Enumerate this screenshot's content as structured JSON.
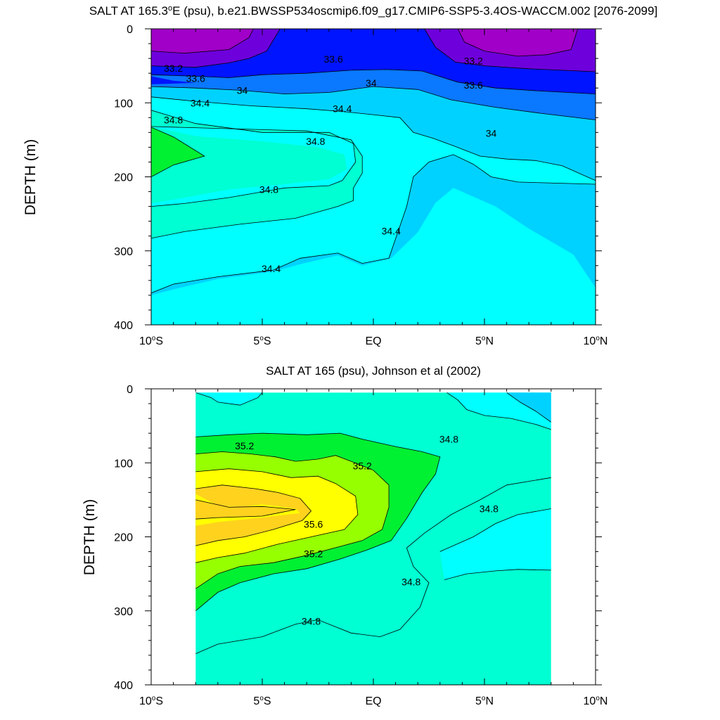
{
  "figure": {
    "description": "Two-panel ocean salinity depth cross-section"
  },
  "colors": {
    "s_lt_32_8": "#a000c8",
    "s_32_8_33_2": "#6e00dc",
    "s_33_2_33_6": "#0014ff",
    "s_33_6_34_0": "#0a78ff",
    "s_34_0_34_4": "#00d2ff",
    "s_34_4_34_8": "#00ffff",
    "s_34_8_35_2": "#00ffd2",
    "s_35_2_35_6": "#00f032",
    "s_35_6_36_0": "#96ff00",
    "s_36_0_36_4": "#ffff00",
    "s_gt_36_4": "#ffd21e",
    "contour_line": "#000000"
  },
  "chart_data": [
    {
      "type": "heatmap",
      "subtype": "filled-contour",
      "title_prefix": "SALT AT 165.3",
      "title_degree": "o",
      "title_suffix": "E (psu), b.e21.BWSSP534oscmip6.f09_g17.CMIP6-SSP5-3.4OS-WACCM.002 [2076-2099]",
      "xlabel": "",
      "ylabel": "DEPTH (m)",
      "xlim": [
        -10,
        10
      ],
      "ylim": [
        400,
        0
      ],
      "x_ticks": [
        {
          "value": -10,
          "num": "10",
          "deg": "o",
          "hemi": "S"
        },
        {
          "value": -5,
          "num": "5",
          "deg": "o",
          "hemi": "S"
        },
        {
          "value": 0,
          "num": "EQ",
          "deg": "",
          "hemi": ""
        },
        {
          "value": 5,
          "num": "5",
          "deg": "o",
          "hemi": "N"
        },
        {
          "value": 10,
          "num": "10",
          "deg": "o",
          "hemi": "N"
        }
      ],
      "y_ticks": [
        0,
        100,
        200,
        300,
        400
      ],
      "y_tick_labels": [
        "0",
        "100",
        "200",
        "300",
        "400"
      ],
      "data_extent": {
        "lat": [
          -10,
          10
        ],
        "depth": [
          0,
          400
        ]
      },
      "contour_levels": [
        32.8,
        33.2,
        33.6,
        34.0,
        34.4,
        34.8,
        35.2,
        35.6,
        36.0,
        36.4
      ],
      "contour_labels": [
        {
          "text": "33.2",
          "lat": -9.0,
          "depth": 53
        },
        {
          "text": "33.6",
          "lat": -8.0,
          "depth": 67
        },
        {
          "text": "34",
          "lat": -5.9,
          "depth": 83
        },
        {
          "text": "34.4",
          "lat": -7.8,
          "depth": 100
        },
        {
          "text": "34.8",
          "lat": -9.0,
          "depth": 123
        },
        {
          "text": "33.6",
          "lat": -1.8,
          "depth": 41
        },
        {
          "text": "34",
          "lat": -0.1,
          "depth": 73
        },
        {
          "text": "34.4",
          "lat": -1.4,
          "depth": 108
        },
        {
          "text": "34.8",
          "lat": -2.6,
          "depth": 152
        },
        {
          "text": "34.8",
          "lat": -4.7,
          "depth": 217
        },
        {
          "text": "34.4",
          "lat": 0.8,
          "depth": 273
        },
        {
          "text": "34.4",
          "lat": -4.6,
          "depth": 324
        },
        {
          "text": "33.2",
          "lat": 4.5,
          "depth": 43
        },
        {
          "text": "33.6",
          "lat": 4.5,
          "depth": 76
        },
        {
          "text": "34",
          "lat": 5.3,
          "depth": 141
        }
      ],
      "features": [
        "Fresh surface cores (<32.8 psu) near 8S and 6N in the top 30 m",
        "Salinity maximum (35.2-35.6 psu) near 10S-8S at 150-190 m",
        "Deep layer of 34.4-34.8 psu below 300 m"
      ]
    },
    {
      "type": "heatmap",
      "subtype": "filled-contour",
      "title_prefix": "SALT AT 165 (psu), Johnson et al (2002)",
      "title_degree": "",
      "title_suffix": "",
      "xlabel": "",
      "ylabel": "DEPTH (m)",
      "xlim": [
        -10,
        10
      ],
      "ylim": [
        400,
        0
      ],
      "x_ticks": [
        {
          "value": -10,
          "num": "10",
          "deg": "o",
          "hemi": "S"
        },
        {
          "value": -5,
          "num": "5",
          "deg": "o",
          "hemi": "S"
        },
        {
          "value": 0,
          "num": "EQ",
          "deg": "",
          "hemi": ""
        },
        {
          "value": 5,
          "num": "5",
          "deg": "o",
          "hemi": "N"
        },
        {
          "value": 10,
          "num": "10",
          "deg": "o",
          "hemi": "N"
        }
      ],
      "y_ticks": [
        0,
        100,
        200,
        300,
        400
      ],
      "y_tick_labels": [
        "0",
        "100",
        "200",
        "300",
        "400"
      ],
      "data_extent": {
        "lat": [
          -8,
          8
        ],
        "depth": [
          5,
          400
        ]
      },
      "contour_levels": [
        34.4,
        34.8,
        35.2,
        35.6,
        36.0
      ],
      "contour_labels": [
        {
          "text": "35.2",
          "lat": -5.8,
          "depth": 77
        },
        {
          "text": "35.2",
          "lat": -0.5,
          "depth": 104
        },
        {
          "text": "35.6",
          "lat": -2.7,
          "depth": 183
        },
        {
          "text": "35.2",
          "lat": -2.7,
          "depth": 223
        },
        {
          "text": "34.8",
          "lat": 3.4,
          "depth": 68
        },
        {
          "text": "34.8",
          "lat": 5.2,
          "depth": 162
        },
        {
          "text": "34.8",
          "lat": 1.7,
          "depth": 261
        },
        {
          "text": "34.8",
          "lat": -2.8,
          "depth": 314
        }
      ],
      "features": [
        "Observations cover 8S to 8N only",
        "Subsurface salinity maximum (>36 psu) near 7S-4S at 150-185 m",
        "Fresher water (<34.8 psu) near 6N-8N in the upper 50 m and 250-260 m"
      ]
    }
  ]
}
